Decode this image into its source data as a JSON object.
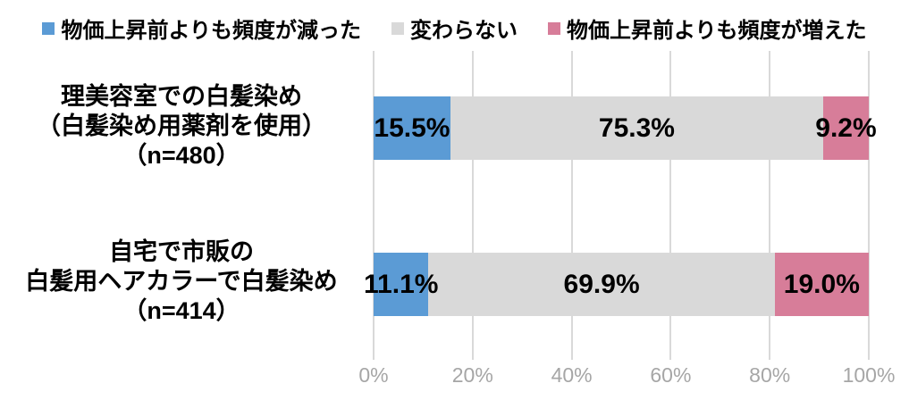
{
  "chart_data": {
    "type": "bar",
    "variant": "horizontal-stacked-100",
    "title": "",
    "xlabel": "",
    "ylabel": "",
    "xlim": [
      0,
      100
    ],
    "x_ticks": [
      "0%",
      "20%",
      "40%",
      "60%",
      "80%",
      "100%"
    ],
    "grid": true,
    "grid_color": "#d9d9d9",
    "tick_label_color": "#a6a6a6",
    "legend_position": "top",
    "series": [
      {
        "name": "物価上昇前よりも頻度が減った",
        "color": "#5b9bd5",
        "values": [
          15.5,
          11.1
        ]
      },
      {
        "name": "変わらない",
        "color": "#d9d9d9",
        "values": [
          75.3,
          69.9
        ]
      },
      {
        "name": "物価上昇前よりも頻度が増えた",
        "color": "#d77d99",
        "values": [
          9.2,
          19.0
        ]
      }
    ],
    "categories": [
      {
        "lines": [
          "理美容室での白髪染め",
          "（白髪染め用薬剤を使用）",
          "（n=480）"
        ]
      },
      {
        "lines": [
          "自宅で市販の",
          "白髪用ヘアカラーで白髪染め",
          "（n=414）"
        ]
      }
    ],
    "data_labels": [
      [
        "15.5%",
        "75.3%",
        "9.2%"
      ],
      [
        "11.1%",
        "69.9%",
        "19.0%"
      ]
    ]
  }
}
